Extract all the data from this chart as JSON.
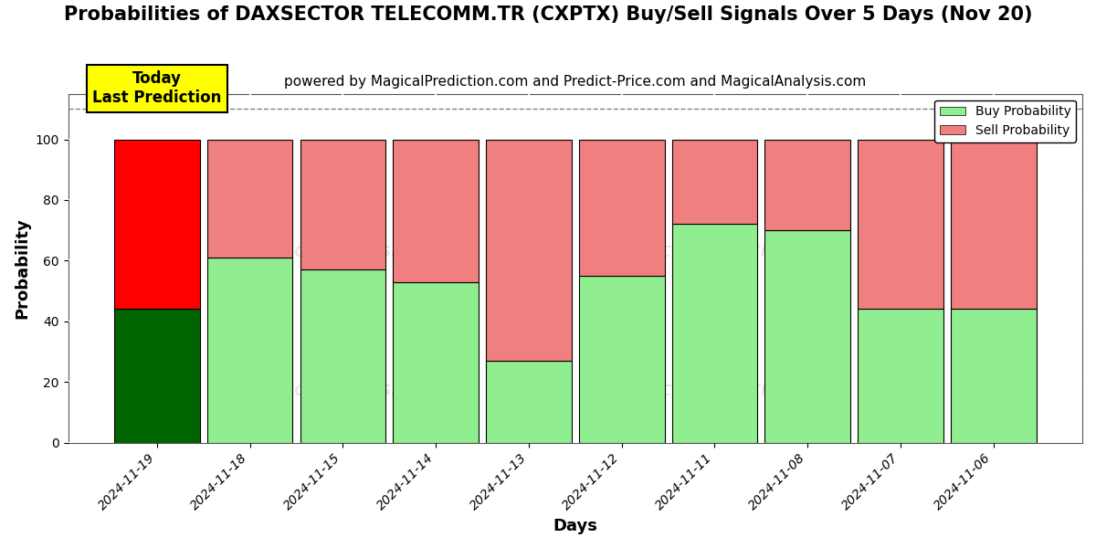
{
  "title": "Probabilities of DAXSECTOR TELECOMM.TR (CXPTX) Buy/Sell Signals Over 5 Days (Nov 20)",
  "subtitle": "powered by MagicalPrediction.com and Predict-Price.com and MagicalAnalysis.com",
  "xlabel": "Days",
  "ylabel": "Probability",
  "categories": [
    "2024-11-19",
    "2024-11-18",
    "2024-11-15",
    "2024-11-14",
    "2024-11-13",
    "2024-11-12",
    "2024-11-11",
    "2024-11-08",
    "2024-11-07",
    "2024-11-06"
  ],
  "buy_values": [
    44,
    61,
    57,
    53,
    27,
    55,
    72,
    70,
    44,
    44
  ],
  "sell_values": [
    56,
    39,
    43,
    47,
    73,
    45,
    28,
    30,
    56,
    56
  ],
  "today_buy_color": "#006400",
  "today_sell_color": "#FF0000",
  "buy_color": "#90EE90",
  "sell_color": "#F08080",
  "today_index": 0,
  "today_label": "Today\nLast Prediction",
  "today_label_bg": "#FFFF00",
  "dashed_line_y": 110,
  "ylim": [
    0,
    115
  ],
  "yticks": [
    0,
    20,
    40,
    60,
    80,
    100
  ],
  "grid_color": "#ffffff",
  "bg_color": "#ffffff",
  "legend_buy_label": "Buy Probability",
  "legend_sell_label": "Sell Probability",
  "bar_edge_color": "#000000",
  "bar_linewidth": 0.8,
  "title_fontsize": 15,
  "subtitle_fontsize": 11,
  "label_fontsize": 13,
  "bar_width": 0.92
}
